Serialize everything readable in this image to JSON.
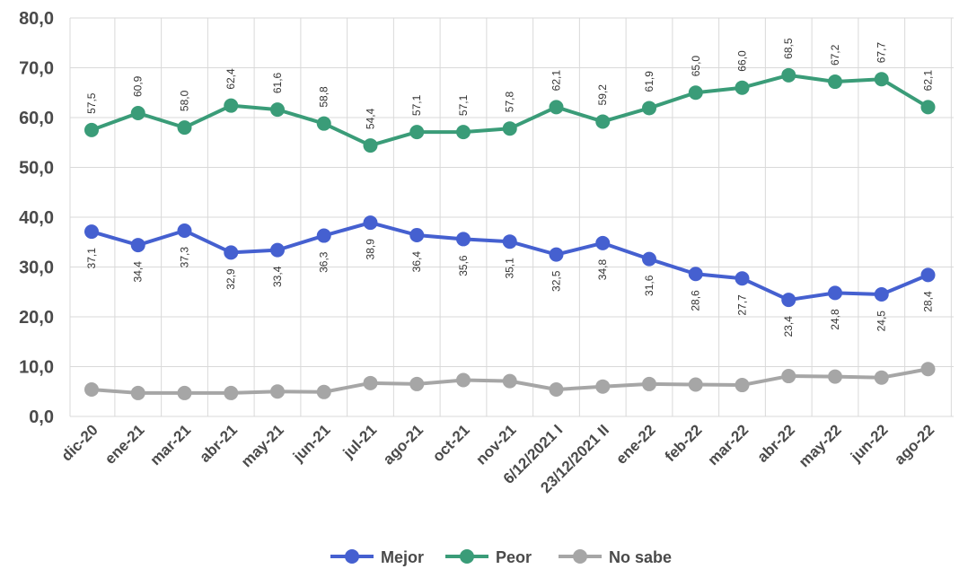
{
  "chart_data": {
    "type": "line",
    "categories": [
      "dic-20",
      "ene-21",
      "mar-21",
      "abr-21",
      "may-21",
      "jun-21",
      "jul-21",
      "ago-21",
      "oct-21",
      "nov-21",
      "6/12/2021 I",
      "23/12/2021 II",
      "ene-22",
      "feb-22",
      "mar-22",
      "abr-22",
      "may-22",
      "jun-22",
      "ago-22"
    ],
    "ylim": [
      0,
      80
    ],
    "yticks": [
      "0,0",
      "10,0",
      "20,0",
      "30,0",
      "40,0",
      "50,0",
      "60,0",
      "70,0",
      "80,0"
    ],
    "grid": true,
    "legend_position": "bottom",
    "series": [
      {
        "name": "Mejor",
        "color": "#4560d0",
        "values": [
          37.1,
          34.4,
          37.3,
          32.9,
          33.4,
          36.3,
          38.9,
          36.4,
          35.6,
          35.1,
          32.5,
          34.8,
          31.6,
          28.6,
          27.7,
          23.4,
          24.8,
          24.5,
          28.4
        ],
        "labels": [
          "37,1",
          "34,4",
          "37,3",
          "32,9",
          "33,4",
          "36,3",
          "38,9",
          "36,4",
          "35,6",
          "35,1",
          "32,5",
          "34,8",
          "31,6",
          "28,6",
          "27,7",
          "23,4",
          "24,8",
          "24,5",
          "28,4"
        ]
      },
      {
        "name": "Peor",
        "color": "#3a9c78",
        "values": [
          57.5,
          60.9,
          58.0,
          62.4,
          61.6,
          58.8,
          54.4,
          57.1,
          57.1,
          57.8,
          62.1,
          59.2,
          61.9,
          65.0,
          66.0,
          68.5,
          67.2,
          67.7,
          62.1
        ],
        "labels": [
          "57,5",
          "60,9",
          "58,0",
          "62,4",
          "61,6",
          "58,8",
          "54,4",
          "57,1",
          "57,1",
          "57,8",
          "62,1",
          "59,2",
          "61,9",
          "65,0",
          "66,0",
          "68,5",
          "67,2",
          "67,7",
          "62,1"
        ]
      },
      {
        "name": "No sabe",
        "color": "#a6a6a6",
        "values": [
          5.4,
          4.7,
          4.7,
          4.7,
          5.0,
          4.9,
          6.7,
          6.5,
          7.3,
          7.1,
          5.4,
          6.0,
          6.5,
          6.4,
          6.3,
          8.1,
          8.0,
          7.8,
          9.5
        ]
      }
    ]
  }
}
